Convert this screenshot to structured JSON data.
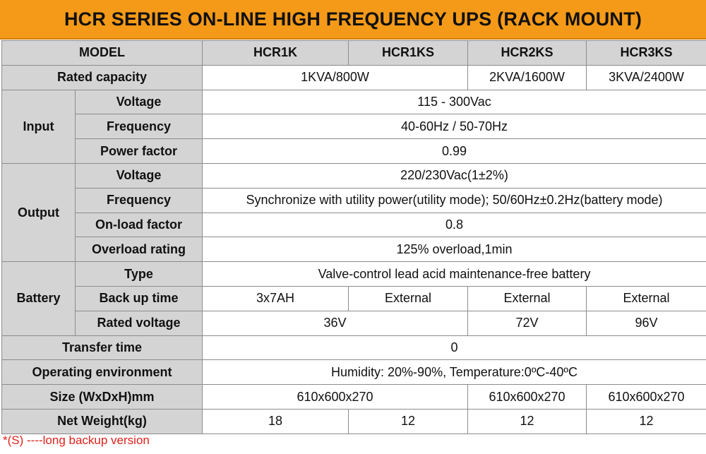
{
  "title": "HCR SERIES ON-LINE HIGH FREQUENCY UPS (RACK MOUNT)",
  "headers": {
    "model": "MODEL",
    "m1": "HCR1K",
    "m2": "HCR1KS",
    "m3": "HCR2KS",
    "m4": "HCR3KS"
  },
  "rated_capacity": {
    "label": "Rated capacity",
    "v12": "1KVA/800W",
    "v3": "2KVA/1600W",
    "v4": "3KVA/2400W"
  },
  "input": {
    "group": "Input",
    "voltage": {
      "label": "Voltage",
      "value": "115 - 300Vac"
    },
    "frequency": {
      "label": "Frequency",
      "value": "40-60Hz / 50-70Hz"
    },
    "power_factor": {
      "label": "Power factor",
      "value": "0.99"
    }
  },
  "output": {
    "group": "Output",
    "voltage": {
      "label": "Voltage",
      "value": "220/230Vac(1±2%)"
    },
    "frequency": {
      "label": "Frequency",
      "value": "Synchronize with utility power(utility mode); 50/60Hz±0.2Hz(battery mode)"
    },
    "onload_factor": {
      "label": "On-load factor",
      "value": "0.8"
    },
    "overload": {
      "label": "Overload rating",
      "value": "125% overload,1min"
    }
  },
  "battery": {
    "group": "Battery",
    "type": {
      "label": "Type",
      "value": "Valve-control lead acid maintenance-free battery"
    },
    "backup": {
      "label": "Back up time",
      "v1": "3x7AH",
      "v2": "External",
      "v3": "External",
      "v4": "External"
    },
    "rated_voltage": {
      "label": "Rated voltage",
      "v12": "36V",
      "v3": "72V",
      "v4": "96V"
    }
  },
  "transfer_time": {
    "label": "Transfer time",
    "value": "0"
  },
  "operating_env": {
    "label": "Operating environment",
    "value": "Humidity: 20%-90%, Temperature:0ºC-40ºC"
  },
  "size": {
    "label": "Size (WxDxH)mm",
    "v12": "610x600x270",
    "v3": "610x600x270",
    "v4": "610x600x270"
  },
  "net_weight": {
    "label": "Net Weight(kg)",
    "v1": "18",
    "v2": "12",
    "v3": "12",
    "v4": "12"
  },
  "footnote": "*(S) ----long backup version",
  "colors": {
    "banner": "#f59a18",
    "label_bg": "#d4d4d4",
    "border": "#8c8c8c",
    "note": "#e0201a"
  }
}
